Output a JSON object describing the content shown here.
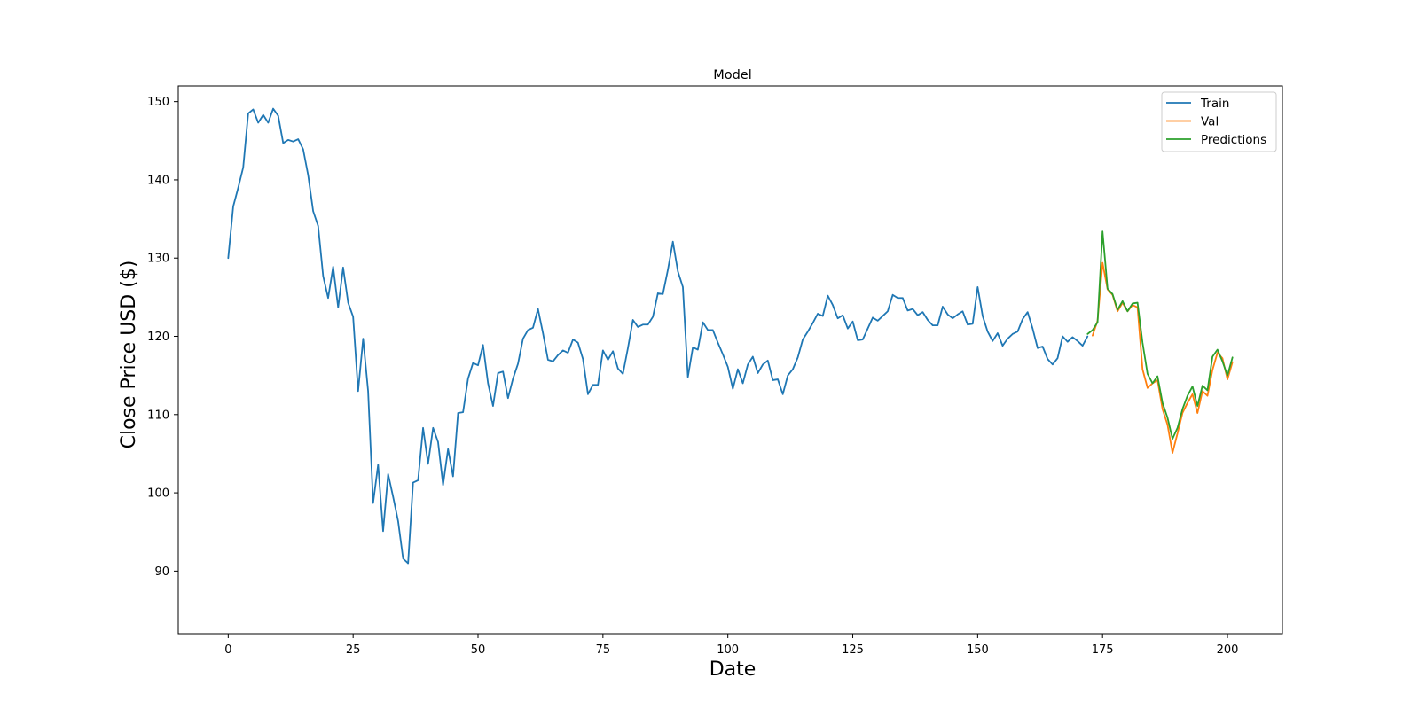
{
  "chart_data": {
    "type": "line",
    "title": "Model",
    "xlabel": "Date",
    "ylabel": "Close Price USD ($)",
    "xlim": [
      -10,
      211
    ],
    "ylim": [
      82,
      152
    ],
    "xticks": [
      0,
      25,
      50,
      75,
      100,
      125,
      150,
      175,
      200
    ],
    "yticks": [
      90,
      100,
      110,
      120,
      130,
      140,
      150
    ],
    "grid": false,
    "legend_position": "top-right",
    "series": [
      {
        "name": "Train",
        "color": "#1f77b4",
        "x_start": 0,
        "values": [
          130.0,
          136.6,
          139.0,
          141.6,
          148.5,
          149.0,
          147.3,
          148.3,
          147.3,
          149.1,
          148.2,
          144.7,
          145.1,
          144.9,
          145.2,
          143.9,
          140.6,
          136.0,
          134.1,
          127.7,
          124.9,
          128.9,
          123.7,
          128.8,
          124.3,
          122.5,
          113.0,
          119.7,
          113.0,
          98.7,
          103.6,
          95.1,
          102.4,
          99.5,
          96.4,
          91.6,
          91.0,
          101.3,
          101.6,
          108.3,
          103.7,
          108.3,
          106.5,
          101.0,
          105.6,
          102.1,
          110.2,
          110.3,
          114.6,
          116.6,
          116.3,
          118.9,
          114.0,
          111.1,
          115.3,
          115.5,
          112.1,
          114.6,
          116.5,
          119.7,
          120.8,
          121.1,
          123.5,
          120.4,
          117.0,
          116.8,
          117.6,
          118.2,
          117.9,
          119.6,
          119.2,
          117.1,
          112.6,
          113.8,
          113.8,
          118.2,
          117.0,
          118.1,
          115.9,
          115.2,
          118.5,
          122.1,
          121.2,
          121.5,
          121.5,
          122.5,
          125.5,
          125.4,
          128.5,
          132.1,
          128.3,
          126.3,
          114.8,
          118.6,
          118.3,
          121.8,
          120.8,
          120.8,
          119.2,
          117.7,
          116.1,
          113.3,
          115.8,
          114.0,
          116.4,
          117.4,
          115.3,
          116.4,
          116.9,
          114.4,
          114.5,
          112.6,
          115.0,
          115.8,
          117.3,
          119.6,
          120.6,
          121.7,
          122.9,
          122.6,
          125.2,
          124.0,
          122.3,
          122.7,
          121.0,
          121.9,
          119.5,
          119.6,
          121.0,
          122.4,
          122.0,
          122.6,
          123.2,
          125.3,
          124.9,
          124.9,
          123.3,
          123.5,
          122.7,
          123.1,
          122.1,
          121.4,
          121.4,
          123.8,
          122.8,
          122.3,
          122.8,
          123.2,
          121.5,
          121.6,
          126.3,
          122.6,
          120.6,
          119.4,
          120.4,
          118.8,
          119.7,
          120.3,
          120.6,
          122.2,
          123.1,
          121.0,
          118.5,
          118.7,
          117.1,
          116.4,
          117.2,
          120.0,
          119.3,
          119.9,
          119.4,
          118.8,
          120.0
        ]
      },
      {
        "name": "Val",
        "color": "#ff7f0e",
        "x_start": 173,
        "values": [
          120.1,
          122.0,
          129.4,
          126.0,
          125.3,
          123.2,
          124.3,
          123.2,
          124.0,
          123.7,
          115.8,
          113.4,
          114.0,
          114.4,
          110.7,
          108.7,
          105.1,
          107.6,
          110.2,
          111.5,
          112.6,
          110.2,
          113.0,
          112.4,
          115.7,
          117.9,
          117.2,
          114.5,
          116.7
        ]
      },
      {
        "name": "Predictions",
        "color": "#2ca02c",
        "x_start": 172,
        "values": [
          120.3,
          120.8,
          121.8,
          133.4,
          126.1,
          125.4,
          123.4,
          124.5,
          123.2,
          124.2,
          124.3,
          119.2,
          115.2,
          114.0,
          114.9,
          111.5,
          109.6,
          106.9,
          108.3,
          110.7,
          112.4,
          113.6,
          111.1,
          113.7,
          113.1,
          117.4,
          118.3,
          116.8,
          115.0,
          117.3
        ]
      }
    ]
  }
}
